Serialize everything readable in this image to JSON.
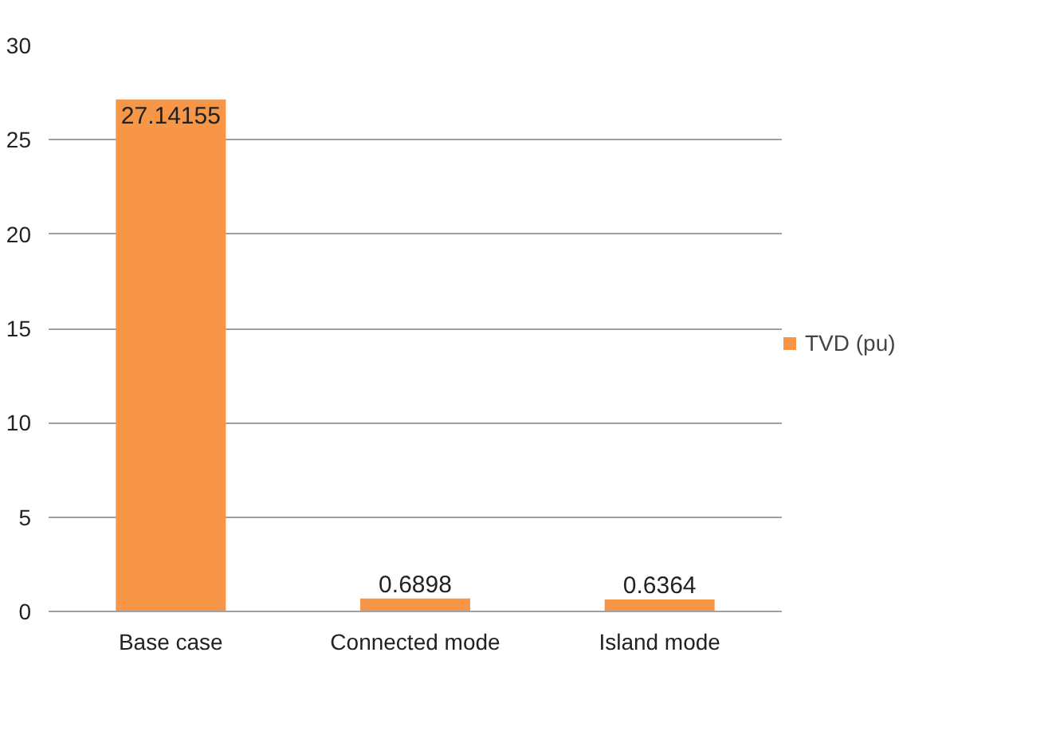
{
  "chart_data": {
    "type": "bar",
    "categories": [
      "Base case",
      "Connected mode",
      "Island mode"
    ],
    "series": [
      {
        "name": "TVD (pu)",
        "color": "#f79646",
        "values": [
          27.14155,
          0.6898,
          0.6364
        ]
      }
    ],
    "data_labels": true,
    "ylim": [
      0,
      30
    ],
    "yticks": [
      0,
      5,
      10,
      15,
      20,
      25,
      30
    ],
    "grid": "y",
    "legend": "right"
  }
}
